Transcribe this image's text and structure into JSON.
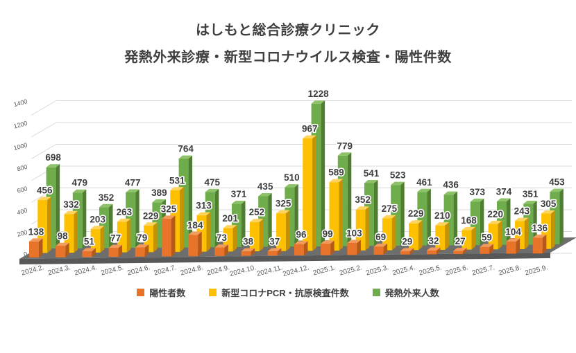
{
  "title": {
    "line1": "はしもと総合診療クリニック",
    "line2": "発熱外来診療・新型コロナウイルス検査・陽性件数"
  },
  "chart_data": {
    "type": "bar",
    "variant": "3d-clustered-column",
    "title": "はしもと総合診療クリニック 発熱外来診療・新型コロナウイルス検査・陽性件数",
    "xlabel": "",
    "ylabel": "",
    "categories": [
      "2024.2.",
      "2024.3.",
      "2024.4.",
      "2024.5.",
      "2024.6.",
      "2024.7.",
      "2024.8.",
      "2024.9.",
      "2024.10.",
      "2024.11.",
      "2024.12.",
      "2025.1.",
      "2025.2.",
      "2025.3.",
      "2025.4.",
      "2025.5.",
      "2025.6.",
      "2025.7.",
      "2025.8.",
      "2025.9."
    ],
    "series": [
      {
        "name": "陽性者数",
        "color": "#e8732a",
        "color_side": "#b5591b",
        "color_top": "#f29b5c",
        "values": [
          138,
          98,
          51,
          77,
          79,
          325,
          184,
          73,
          38,
          37,
          96,
          99,
          103,
          69,
          29,
          32,
          27,
          59,
          104,
          136
        ]
      },
      {
        "name": "新型コロナPCR・抗原検査件数",
        "color": "#fec101",
        "color_side": "#c69102",
        "color_top": "#ffd45e",
        "values": [
          456,
          332,
          203,
          263,
          229,
          531,
          313,
          201,
          252,
          325,
          967,
          589,
          352,
          275,
          229,
          210,
          168,
          220,
          243,
          305
        ]
      },
      {
        "name": "発熱外来人数",
        "color": "#6fad4c",
        "color_side": "#4f7e33",
        "color_top": "#8ec269",
        "values": [
          698,
          479,
          352,
          477,
          389,
          764,
          475,
          371,
          435,
          510,
          1228,
          779,
          541,
          523,
          461,
          436,
          373,
          374,
          351,
          453
        ]
      }
    ],
    "ylim": [
      0,
      1400
    ],
    "ytick_step": 200,
    "yticks": [
      "0",
      "200",
      "400",
      "600",
      "800",
      "1000",
      "1200",
      "1400"
    ],
    "grid": true,
    "legend_position": "bottom",
    "grid_color": "#d9d9d9",
    "floor_color": "#6d6d6d",
    "floor_front_color": "#585858",
    "axis_text_color": "#595959",
    "value_label_color": "#3d3d3d"
  }
}
